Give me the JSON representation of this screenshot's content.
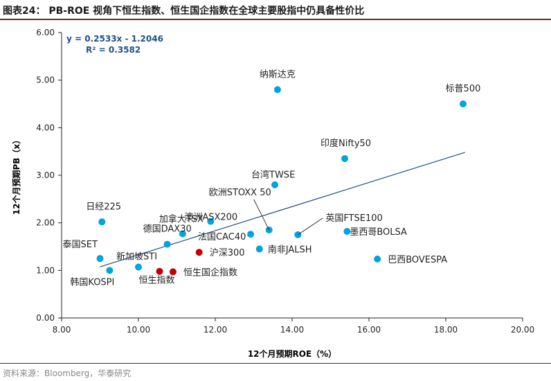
{
  "header": {
    "title": "图表24：  PB-ROE 视角下恒生指数、恒生国企指数在全球主要股指中仍具备性价比"
  },
  "footer": {
    "source": "资料来源：Bloomberg，华泰研究"
  },
  "colors": {
    "point": "#00a3e0",
    "highlight": "#c00000",
    "trend": "#1f4e8c",
    "equation": "#1f4e8c",
    "axis": "#222222"
  },
  "chart_data": {
    "type": "scatter",
    "title": "PB-ROE 视角下恒生指数、恒生国企指数在全球主要股指中仍具备性价比",
    "xlabel": "12个月预期ROE（%）",
    "ylabel": "12个月预期PB（x）",
    "xlim": [
      8,
      20
    ],
    "ylim": [
      0,
      6
    ],
    "xticks": [
      8,
      10,
      12,
      14,
      16,
      18,
      20
    ],
    "yticks": [
      0,
      1,
      2,
      3,
      4,
      5,
      6
    ],
    "xtick_labels": [
      "8.00",
      "10.00",
      "12.00",
      "14.00",
      "16.00",
      "18.00",
      "20.00"
    ],
    "ytick_labels": [
      "0.00",
      "1.00",
      "2.00",
      "3.00",
      "4.00",
      "5.00",
      "6.00"
    ],
    "grid": false,
    "trendline": {
      "equation": "y = 0.2533x - 1.2046",
      "r2": "R² = 0.3582",
      "slope": 0.2533,
      "intercept": -1.2046,
      "x_range": [
        9.0,
        18.5
      ]
    },
    "points": [
      {
        "name": "纳斯达克",
        "x": 13.62,
        "y": 4.8,
        "highlight": false
      },
      {
        "name": "标普500",
        "x": 18.45,
        "y": 4.5,
        "highlight": false
      },
      {
        "name": "印度Nifty50",
        "x": 15.37,
        "y": 3.35,
        "highlight": false
      },
      {
        "name": "台湾TWSE",
        "x": 13.55,
        "y": 2.8,
        "highlight": false
      },
      {
        "name": "欧洲STOXX 50",
        "x": 13.4,
        "y": 1.85,
        "highlight": false
      },
      {
        "name": "英国FTSE100",
        "x": 14.15,
        "y": 1.75,
        "highlight": false
      },
      {
        "name": "墨西哥BOLSA",
        "x": 15.43,
        "y": 1.82,
        "highlight": false
      },
      {
        "name": "巴西BOVESPA",
        "x": 16.22,
        "y": 1.24,
        "highlight": false
      },
      {
        "name": "日经225",
        "x": 9.05,
        "y": 2.02,
        "highlight": false
      },
      {
        "name": "澳洲ASX200",
        "x": 11.88,
        "y": 2.03,
        "highlight": false
      },
      {
        "name": "加拿大TSX",
        "x": 11.15,
        "y": 1.77,
        "highlight": false
      },
      {
        "name": "法国CAC40",
        "x": 12.92,
        "y": 1.76,
        "highlight": false
      },
      {
        "name": "德国DAX30",
        "x": 10.75,
        "y": 1.55,
        "highlight": false
      },
      {
        "name": "南非JALSH",
        "x": 13.15,
        "y": 1.45,
        "highlight": false
      },
      {
        "name": "泰国SET",
        "x": 9.0,
        "y": 1.25,
        "highlight": false
      },
      {
        "name": "新加坡STI",
        "x": 10.0,
        "y": 1.07,
        "highlight": false
      },
      {
        "name": "韩国KOSPI",
        "x": 9.25,
        "y": 1.0,
        "highlight": false
      },
      {
        "name": "沪深300",
        "x": 11.58,
        "y": 1.38,
        "highlight": true
      },
      {
        "name": "恒生指数",
        "x": 10.55,
        "y": 0.98,
        "highlight": true
      },
      {
        "name": "恒生国企指数",
        "x": 10.9,
        "y": 0.97,
        "highlight": true
      }
    ]
  }
}
